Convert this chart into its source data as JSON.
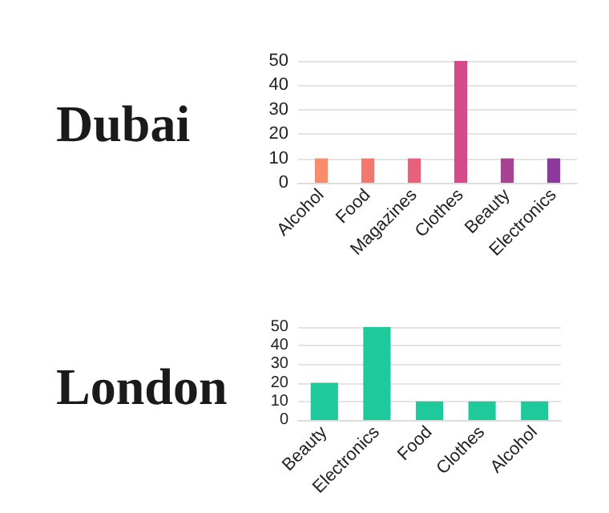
{
  "chart_data": [
    {
      "type": "bar",
      "title": "Dubai",
      "categories": [
        "Alcohol",
        "Food",
        "Magazines",
        "Clothes",
        "Beauty",
        "Electronics"
      ],
      "values": [
        10,
        10,
        10,
        50,
        10,
        10
      ],
      "colors": [
        "#f98c6a",
        "#f4776f",
        "#e9607a",
        "#d44a8a",
        "#a94295",
        "#8e3a9c"
      ],
      "ylim": [
        0,
        50
      ],
      "yticks": [
        0,
        10,
        20,
        30,
        40,
        50
      ],
      "grid": "y"
    },
    {
      "type": "bar",
      "title": "London",
      "categories": [
        "Beauty",
        "Electronics",
        "Food",
        "Clothes",
        "Alcohol"
      ],
      "values": [
        20,
        50,
        10,
        10,
        10
      ],
      "color": "#1ec99b",
      "ylim": [
        0,
        50
      ],
      "yticks": [
        0,
        10,
        20,
        30,
        40,
        50
      ],
      "grid": "y"
    }
  ]
}
